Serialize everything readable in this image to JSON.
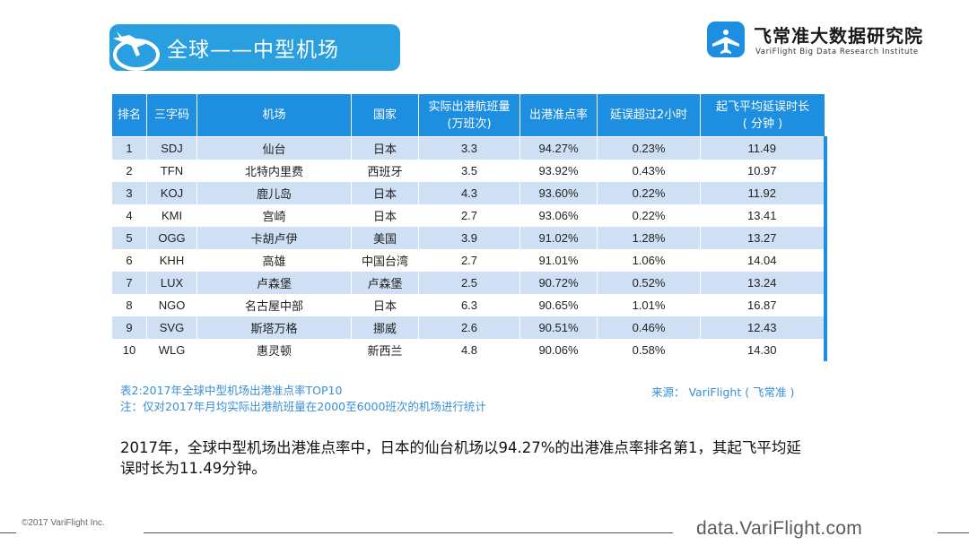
{
  "title": "全球——中型机场",
  "logo": {
    "name": "飞常准大数据研究院",
    "subtitle": "VariFlight Big Data Research Institute"
  },
  "table": {
    "headers": [
      "排名",
      "三字码",
      "机场",
      "国家",
      "实际出港航班量\n(万班次)",
      "出港准点率",
      "延误超过2小时",
      "起飞平均延误时长\n( 分钟 )"
    ],
    "rows": [
      [
        "1",
        "SDJ",
        "仙台",
        "日本",
        "3.3",
        "94.27%",
        "0.23%",
        "11.49"
      ],
      [
        "2",
        "TFN",
        "北特内里费",
        "西班牙",
        "3.5",
        "93.92%",
        "0.43%",
        "10.97"
      ],
      [
        "3",
        "KOJ",
        "鹿儿岛",
        "日本",
        "4.3",
        "93.60%",
        "0.22%",
        "11.92"
      ],
      [
        "4",
        "KMI",
        "宫崎",
        "日本",
        "2.7",
        "93.06%",
        "0.22%",
        "13.41"
      ],
      [
        "5",
        "OGG",
        "卡胡卢伊",
        "美国",
        "3.9",
        "91.02%",
        "1.28%",
        "13.27"
      ],
      [
        "6",
        "KHH",
        "高雄",
        "中国台湾",
        "2.7",
        "91.01%",
        "1.06%",
        "14.04"
      ],
      [
        "7",
        "LUX",
        "卢森堡",
        "卢森堡",
        "2.5",
        "90.72%",
        "0.52%",
        "13.24"
      ],
      [
        "8",
        "NGO",
        "名古屋中部",
        "日本",
        "6.3",
        "90.65%",
        "1.01%",
        "16.87"
      ],
      [
        "9",
        "SVG",
        "斯塔万格",
        "挪威",
        "2.6",
        "90.51%",
        "0.46%",
        "12.43"
      ],
      [
        "10",
        "WLG",
        "惠灵顿",
        "新西兰",
        "4.8",
        "90.06%",
        "0.58%",
        "14.30"
      ]
    ]
  },
  "caption": {
    "table_title": "表2:2017年全球中型机场出港准点率TOP10",
    "note": "注：仅对2017年月均实际出港航班量在2000至6000班次的机场进行统计",
    "source": "来源： VariFlight ( 飞常准 )"
  },
  "summary": "2017年，全球中型机场出港准点率中，日本的仙台机场以94.27%的出港准点率排名第1，其起飞平均延误时长为11.49分钟。",
  "footer": {
    "copyright": "©2017 VariFlight Inc.",
    "url": "data.VariFlight.com"
  },
  "colors": {
    "accent": "#1e8fe0",
    "banner": "#2a9fe0",
    "row_stripe": "#cfe0f5",
    "caption": "#3a8fd6"
  }
}
